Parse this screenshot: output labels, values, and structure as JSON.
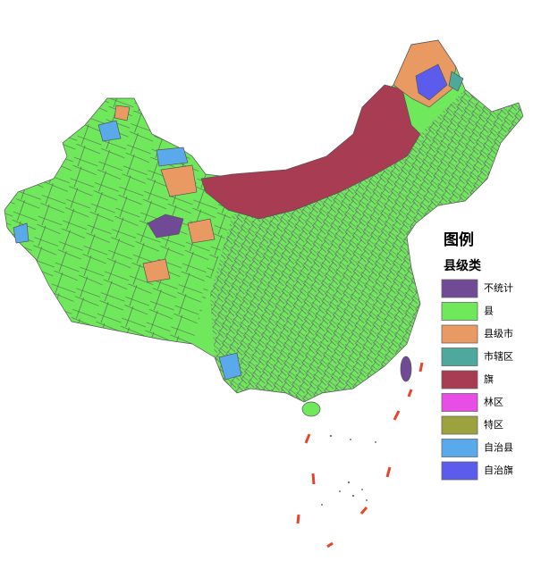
{
  "legend": {
    "title": "图例",
    "subtitle": "县级类",
    "items": [
      {
        "label": "不统计",
        "color": "#704a94"
      },
      {
        "label": "县",
        "color": "#6fe85c"
      },
      {
        "label": "县级市",
        "color": "#e99a62"
      },
      {
        "label": "市辖区",
        "color": "#4ea89c"
      },
      {
        "label": "旗",
        "color": "#a83c52"
      },
      {
        "label": "林区",
        "color": "#e84ee6"
      },
      {
        "label": "特区",
        "color": "#9ca33e"
      },
      {
        "label": "自治县",
        "color": "#5aa9ea"
      },
      {
        "label": "自治旗",
        "color": "#5b5cec"
      }
    ]
  }
}
